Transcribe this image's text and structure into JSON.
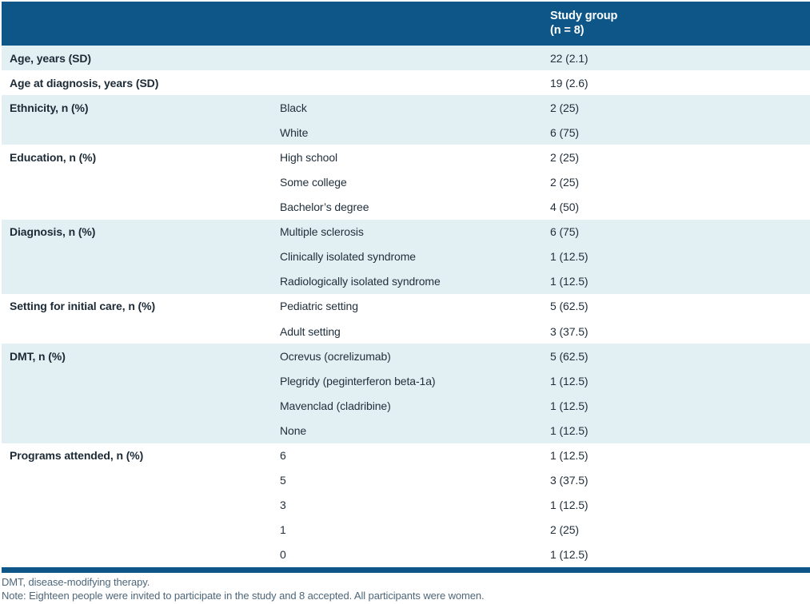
{
  "header": {
    "col1": "",
    "col2": "",
    "col3_line1": "Study group",
    "col3_line2": "(n = 8)"
  },
  "groups": [
    {
      "category": "Age, years (SD)",
      "rows": [
        {
          "sub": "",
          "value": "22 (2.1)"
        }
      ]
    },
    {
      "category": "Age at diagnosis, years (SD)",
      "rows": [
        {
          "sub": "",
          "value": "19 (2.6)"
        }
      ]
    },
    {
      "category": "Ethnicity, n (%)",
      "rows": [
        {
          "sub": "Black",
          "value": "2 (25)"
        },
        {
          "sub": "White",
          "value": "6 (75)"
        }
      ]
    },
    {
      "category": "Education, n (%)",
      "rows": [
        {
          "sub": "High school",
          "value": "2 (25)"
        },
        {
          "sub": "Some college",
          "value": "2 (25)"
        },
        {
          "sub": "Bachelor’s degree",
          "value": "4 (50)"
        }
      ]
    },
    {
      "category": "Diagnosis, n (%)",
      "rows": [
        {
          "sub": "Multiple sclerosis",
          "value": "6 (75)"
        },
        {
          "sub": "Clinically isolated syndrome",
          "value": "1 (12.5)"
        },
        {
          "sub": "Radiologically isolated syndrome",
          "value": "1 (12.5)"
        }
      ]
    },
    {
      "category": "Setting for initial care, n (%)",
      "rows": [
        {
          "sub": "Pediatric setting",
          "value": "5 (62.5)"
        },
        {
          "sub": "Adult setting",
          "value": "3 (37.5)"
        }
      ]
    },
    {
      "category": "DMT, n (%)",
      "rows": [
        {
          "sub": "Ocrevus (ocrelizumab)",
          "value": "5 (62.5)"
        },
        {
          "sub": "Plegridy (peginterferon beta-1a)",
          "value": "1 (12.5)"
        },
        {
          "sub": "Mavenclad (cladribine)",
          "value": "1 (12.5)"
        },
        {
          "sub": "None",
          "value": "1 (12.5)"
        }
      ]
    },
    {
      "category": "Programs attended, n (%)",
      "rows": [
        {
          "sub": "6",
          "value": "1 (12.5)"
        },
        {
          "sub": "5",
          "value": "3 (37.5)"
        },
        {
          "sub": "3",
          "value": "1 (12.5)"
        },
        {
          "sub": "1",
          "value": "2 (25)"
        },
        {
          "sub": "0",
          "value": "1 (12.5)"
        }
      ]
    }
  ],
  "footnotes": {
    "abbreviation": "DMT, disease-modifying therapy.",
    "note": "Note: Eighteen people were invited to participate in the study and 8 accepted. All participants were women."
  },
  "colors": {
    "header_bg": "#0e5687",
    "row_alt_bg": "#e2f0f4",
    "body_text": "#22303d",
    "footnote_text": "#4d6679"
  }
}
